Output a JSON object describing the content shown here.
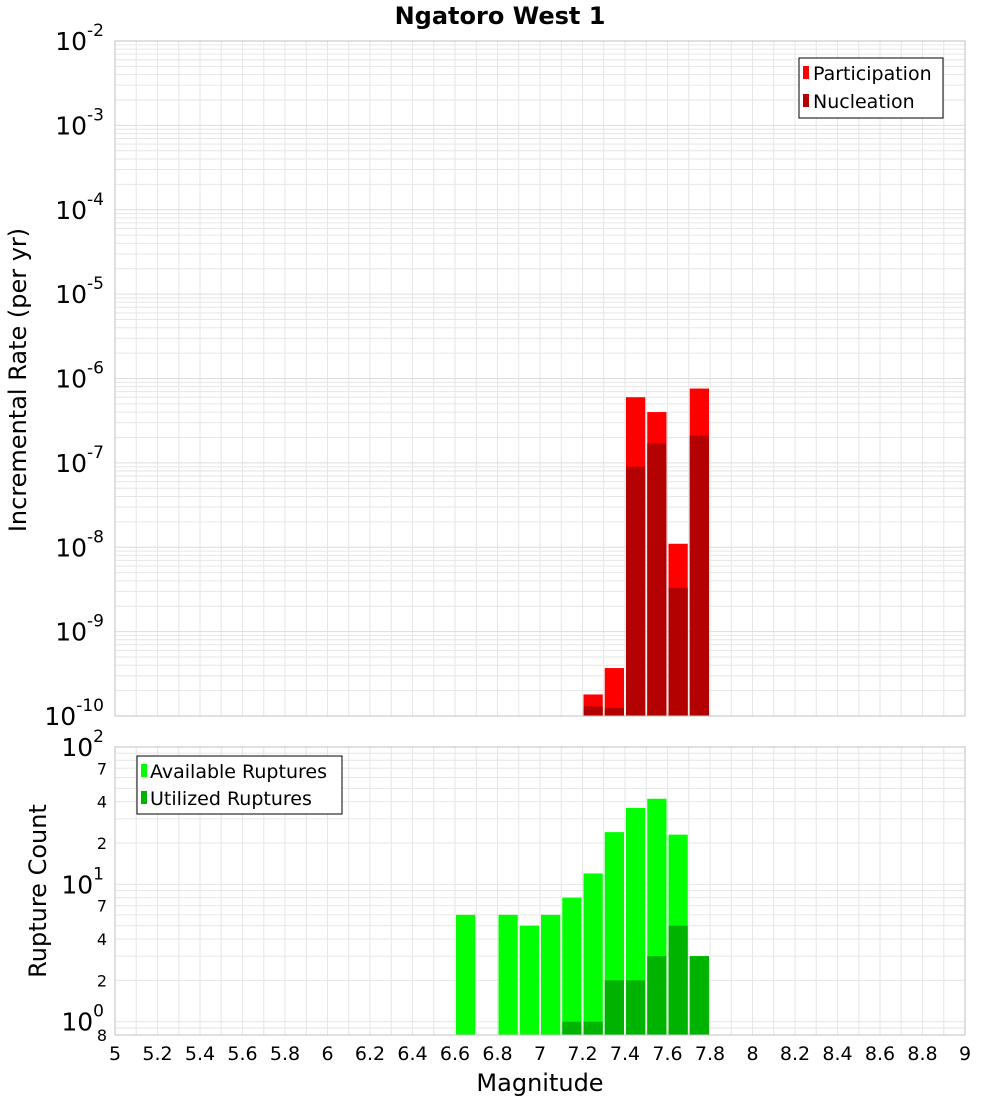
{
  "chart_data": [
    {
      "type": "bar",
      "title": "Ngatoro West 1",
      "xlabel": "Magnitude",
      "ylabel": "Incremental Rate (per yr)",
      "yscale": "log",
      "xlim": [
        5,
        9
      ],
      "ylim": [
        1e-10,
        0.01
      ],
      "grid": true,
      "legend_position": "top-right",
      "bin_width": 0.1,
      "x": [
        7.25,
        7.35,
        7.45,
        7.55,
        7.65,
        7.75
      ],
      "series": [
        {
          "name": "Participation",
          "color": "#ff0000",
          "values": [
            1.8e-10,
            3.7e-10,
            6e-07,
            4e-07,
            1.1e-08,
            7.6e-07
          ]
        },
        {
          "name": "Nucleation",
          "color": "#b30000",
          "values": [
            1.3e-10,
            1.25e-10,
            9e-08,
            1.7e-07,
            3.3e-09,
            2.1e-07
          ]
        }
      ]
    },
    {
      "type": "bar",
      "xlabel": "Magnitude",
      "ylabel": "Rupture Count",
      "yscale": "log",
      "xlim": [
        5,
        9
      ],
      "ylim": [
        0.8,
        100
      ],
      "grid": true,
      "legend_position": "top-left",
      "bin_width": 0.1,
      "x": [
        6.65,
        6.85,
        6.95,
        7.05,
        7.15,
        7.25,
        7.35,
        7.45,
        7.55,
        7.65,
        7.75
      ],
      "series": [
        {
          "name": "Available Ruptures",
          "color": "#00ff00",
          "values": [
            6,
            6,
            5,
            6,
            8,
            12,
            24,
            36,
            42,
            23,
            3
          ]
        },
        {
          "name": "Utilized Ruptures",
          "color": "#00b300",
          "values": [
            0,
            0,
            0,
            0,
            1,
            1,
            2,
            2,
            3,
            5,
            3
          ]
        }
      ]
    }
  ],
  "top_axis": {
    "major_ticks": [
      {
        "value": 0.01,
        "base": "10",
        "exp": "-2"
      },
      {
        "value": 0.001,
        "base": "10",
        "exp": "-3"
      },
      {
        "value": 0.0001,
        "base": "10",
        "exp": "-4"
      },
      {
        "value": 1e-05,
        "base": "10",
        "exp": "-5"
      },
      {
        "value": 1e-06,
        "base": "10",
        "exp": "-6"
      },
      {
        "value": 1e-07,
        "base": "10",
        "exp": "-7"
      },
      {
        "value": 1e-08,
        "base": "10",
        "exp": "-8"
      },
      {
        "value": 1e-09,
        "base": "10",
        "exp": "-9"
      },
      {
        "value": 1e-10,
        "base": "10",
        "exp": "-10"
      }
    ]
  },
  "bottom_axis": {
    "major_ticks": [
      {
        "value": 100,
        "base": "10",
        "exp": "2"
      },
      {
        "value": 10,
        "base": "10",
        "exp": "1"
      },
      {
        "value": 1,
        "base": "10",
        "exp": "0"
      }
    ],
    "minor_labels": [
      {
        "value": 70,
        "text": "7"
      },
      {
        "value": 40,
        "text": "4"
      },
      {
        "value": 20,
        "text": "2"
      },
      {
        "value": 7,
        "text": "7"
      },
      {
        "value": 4,
        "text": "4"
      },
      {
        "value": 2,
        "text": "2"
      },
      {
        "value": 0.8,
        "text": "8"
      }
    ]
  },
  "x_tick_labels": [
    "5",
    "5.2",
    "5.4",
    "5.6",
    "5.8",
    "6",
    "6.2",
    "6.4",
    "6.6",
    "6.8",
    "7",
    "7.2",
    "7.4",
    "7.6",
    "7.8",
    "8",
    "8.2",
    "8.4",
    "8.6",
    "8.8",
    "9"
  ],
  "colors": {
    "grid": "#e6e6e6",
    "frame": "#c0c0c0",
    "participation": "#ff0000",
    "nucleation": "#b30000",
    "available": "#00ff00",
    "utilized": "#00b300"
  }
}
